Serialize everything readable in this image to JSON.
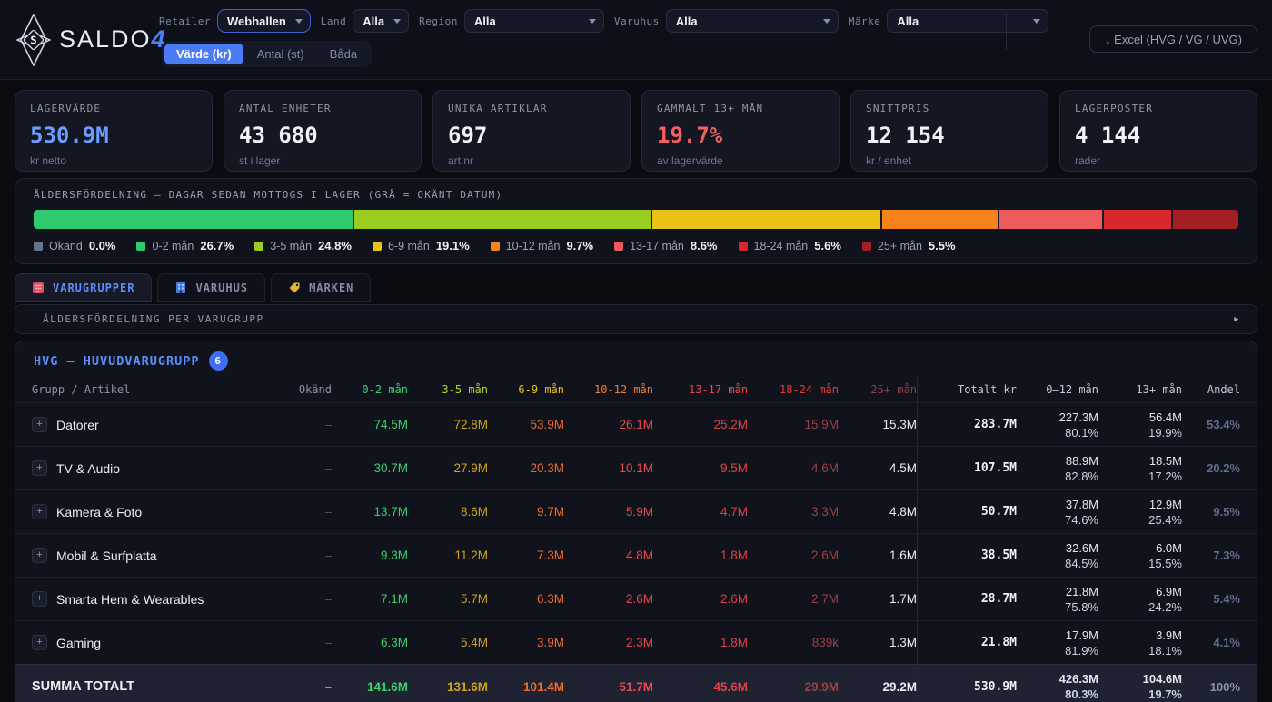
{
  "app": {
    "brand": "SALDO",
    "brand_accent": "4"
  },
  "header": {
    "filters": [
      {
        "label": "Retailer",
        "value": "Webhallen"
      },
      {
        "label": "Land",
        "value": "Alla"
      },
      {
        "label": "Region",
        "value": "Alla"
      },
      {
        "label": "Varuhus",
        "value": "Alla"
      },
      {
        "label": "Märke",
        "value": "Alla"
      }
    ],
    "toggle": [
      {
        "label": "Värde (kr)",
        "active": true
      },
      {
        "label": "Antal (st)",
        "active": false
      },
      {
        "label": "Båda",
        "active": false
      }
    ],
    "excel_label": "↓ Excel (HVG / VG / UVG)"
  },
  "kpis": [
    {
      "label": "LAGERVÄRDE",
      "value": "530.9M",
      "sub": "kr netto",
      "color": "#6d9bff"
    },
    {
      "label": "ANTAL ENHETER",
      "value": "43 680",
      "sub": "st i lager"
    },
    {
      "label": "UNIKA ARTIKLAR",
      "value": "697",
      "sub": "art.nr"
    },
    {
      "label": "GAMMALT 13+ MÅN",
      "value": "19.7%",
      "sub": "av lagervärde",
      "color": "#f0605f"
    },
    {
      "label": "SNITTPRIS",
      "value": "12 154",
      "sub": "kr / enhet"
    },
    {
      "label": "LAGERPOSTER",
      "value": "4 144",
      "sub": "rader"
    }
  ],
  "age": {
    "title": "ÅLDERSFÖRDELNING — DAGAR SEDAN MOTTOGS I LAGER (GRÅ = OKÄNT DATUM)",
    "segments": [
      {
        "label": "Okänd",
        "pct": "0.0%",
        "value": 0.0,
        "color": "#64748b"
      },
      {
        "label": "0-2 mån",
        "pct": "26.7%",
        "value": 26.7,
        "color": "#2ecb6e"
      },
      {
        "label": "3-5 mån",
        "pct": "24.8%",
        "value": 24.8,
        "color": "#9acd1f"
      },
      {
        "label": "6-9 mån",
        "pct": "19.1%",
        "value": 19.1,
        "color": "#e9c214"
      },
      {
        "label": "10-12 mån",
        "pct": "9.7%",
        "value": 9.7,
        "color": "#f8821a"
      },
      {
        "label": "13-17 mån",
        "pct": "8.6%",
        "value": 8.6,
        "color": "#ef5a5c"
      },
      {
        "label": "18-24 mån",
        "pct": "5.6%",
        "value": 5.6,
        "color": "#d8282e"
      },
      {
        "label": "25+ mån",
        "pct": "5.5%",
        "value": 5.5,
        "color": "#a21f24"
      }
    ]
  },
  "tabs": [
    {
      "label": "VARUGRUPPER",
      "active": true
    },
    {
      "label": "VARUHUS",
      "active": false
    },
    {
      "label": "MÄRKEN",
      "active": false
    }
  ],
  "collapse": {
    "title": "ÅLDERSFÖRDELNING PER VARUGRUPP",
    "arrow": "▶"
  },
  "table": {
    "title": "HVG — HUVUDVARUGRUPP",
    "badge": "6",
    "columns": [
      {
        "label": "Grupp / Artikel",
        "color": "#8b93a7"
      },
      {
        "label": "Okänd",
        "color": "#8b93a7"
      },
      {
        "label": "0-2 mån",
        "color": "#3bd171"
      },
      {
        "label": "3-5 mån",
        "color": "#a8d92e"
      },
      {
        "label": "6-9 mån",
        "color": "#e5c11a"
      },
      {
        "label": "10-12 mån",
        "color": "#f07e27"
      },
      {
        "label": "13-17 mån",
        "color": "#ef4747"
      },
      {
        "label": "18-24 mån",
        "color": "#e23c3c"
      },
      {
        "label": "25+ mån",
        "color": "#8f3d44"
      },
      {
        "label": "Totalt kr",
        "color": "#c3c8d4"
      },
      {
        "label": "0–12 mån",
        "color": "#c3c8d4"
      },
      {
        "label": "13+ mån",
        "color": "#c3c8d4"
      },
      {
        "label": "Andel",
        "color": "#c3c8d4"
      }
    ],
    "age_value_colors": [
      "#3fd06e",
      "#d0a41e",
      "#ee6a31",
      "#e84a4e",
      "#dc4246",
      "#9d4046",
      "#e9ecf3"
    ],
    "rows": [
      {
        "name": "Datorer",
        "okand": "–",
        "ages": [
          "74.5M",
          "72.8M",
          "53.9M",
          "26.1M",
          "25.2M",
          "15.9M",
          "15.3M"
        ],
        "total": "283.7M",
        "m0_12": {
          "value": "227.3M",
          "pct": "80.1%"
        },
        "m13": {
          "value": "56.4M",
          "pct": "19.9%"
        },
        "andel": "53.4%"
      },
      {
        "name": "TV & Audio",
        "okand": "–",
        "ages": [
          "30.7M",
          "27.9M",
          "20.3M",
          "10.1M",
          "9.5M",
          "4.6M",
          "4.5M"
        ],
        "total": "107.5M",
        "m0_12": {
          "value": "88.9M",
          "pct": "82.8%"
        },
        "m13": {
          "value": "18.5M",
          "pct": "17.2%"
        },
        "andel": "20.2%"
      },
      {
        "name": "Kamera & Foto",
        "okand": "–",
        "ages": [
          "13.7M",
          "8.6M",
          "9.7M",
          "5.9M",
          "4.7M",
          "3.3M",
          "4.8M"
        ],
        "total": "50.7M",
        "m0_12": {
          "value": "37.8M",
          "pct": "74.6%"
        },
        "m13": {
          "value": "12.9M",
          "pct": "25.4%"
        },
        "andel": "9.5%"
      },
      {
        "name": "Mobil & Surfplatta",
        "okand": "–",
        "ages": [
          "9.3M",
          "11.2M",
          "7.3M",
          "4.8M",
          "1.8M",
          "2.6M",
          "1.6M"
        ],
        "total": "38.5M",
        "m0_12": {
          "value": "32.6M",
          "pct": "84.5%"
        },
        "m13": {
          "value": "6.0M",
          "pct": "15.5%"
        },
        "andel": "7.3%"
      },
      {
        "name": "Smarta Hem & Wearables",
        "okand": "–",
        "ages": [
          "7.1M",
          "5.7M",
          "6.3M",
          "2.6M",
          "2.6M",
          "2.7M",
          "1.7M"
        ],
        "total": "28.7M",
        "m0_12": {
          "value": "21.8M",
          "pct": "75.8%"
        },
        "m13": {
          "value": "6.9M",
          "pct": "24.2%"
        },
        "andel": "5.4%"
      },
      {
        "name": "Gaming",
        "okand": "–",
        "ages": [
          "6.3M",
          "5.4M",
          "3.9M",
          "2.3M",
          "1.8M",
          "839k",
          "1.3M"
        ],
        "total": "21.8M",
        "m0_12": {
          "value": "17.9M",
          "pct": "81.9%"
        },
        "m13": {
          "value": "3.9M",
          "pct": "18.1%"
        },
        "andel": "4.1%"
      }
    ],
    "total_row": {
      "name": "SUMMA TOTALT",
      "okand": "–",
      "ages": [
        "141.6M",
        "131.6M",
        "101.4M",
        "51.7M",
        "45.6M",
        "29.9M",
        "29.2M"
      ],
      "total": "530.9M",
      "m0_12": {
        "value": "426.3M",
        "pct": "80.3%"
      },
      "m13": {
        "value": "104.6M",
        "pct": "19.7%"
      },
      "andel": "100%"
    }
  }
}
